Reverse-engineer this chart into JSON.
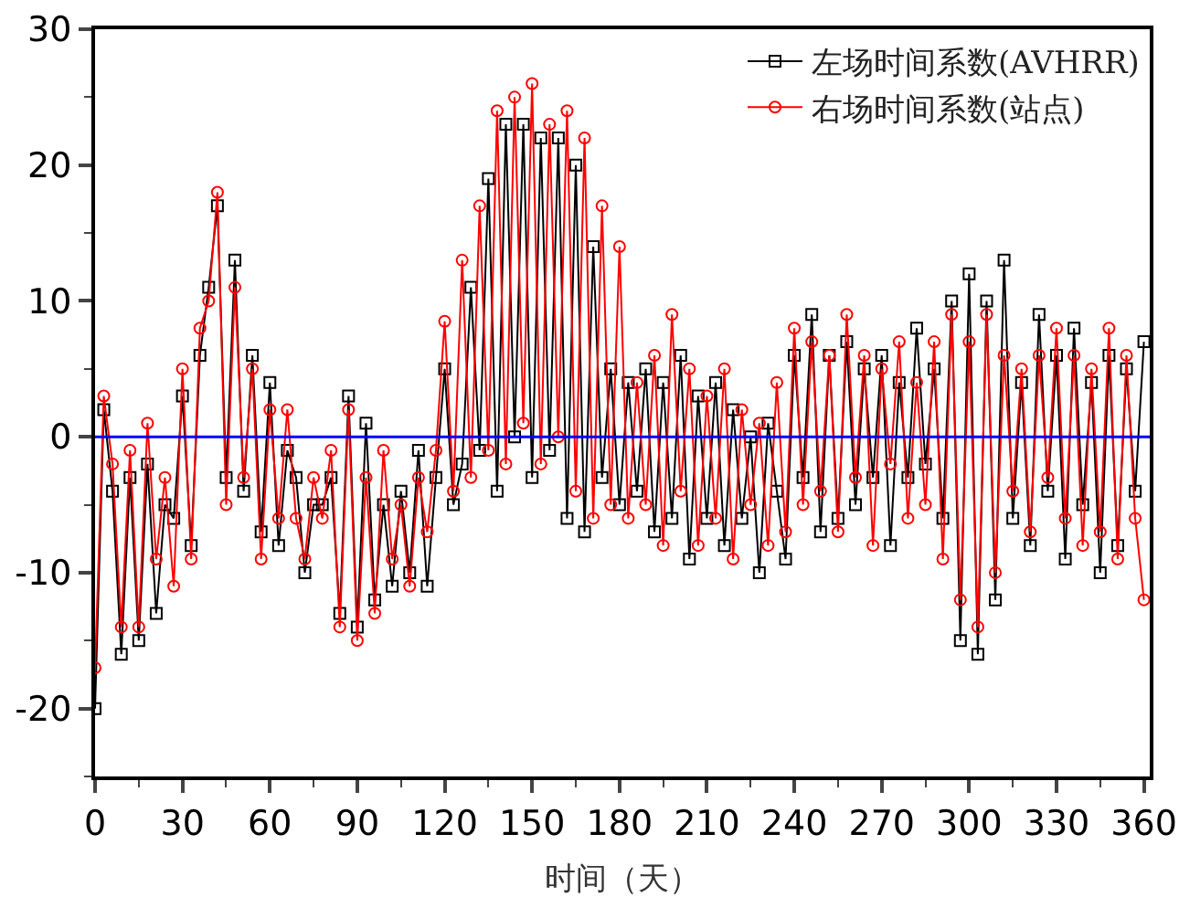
{
  "chart_data": {
    "type": "line",
    "xlabel": "时间（天）",
    "xlim": [
      0,
      362
    ],
    "xticks": [
      0,
      30,
      60,
      90,
      120,
      150,
      180,
      210,
      240,
      270,
      300,
      330,
      360
    ],
    "ylim": [
      -25,
      30
    ],
    "yticks": [
      -20,
      -10,
      0,
      10,
      20,
      30
    ],
    "grid": false,
    "legend": "top right",
    "line_style": "solid",
    "x": [
      0,
      3,
      6,
      9,
      12,
      15,
      18,
      21,
      24,
      27,
      30,
      33,
      36,
      39,
      42,
      45,
      48,
      51,
      54,
      57,
      60,
      63,
      66,
      69,
      72,
      75,
      78,
      81,
      84,
      87,
      90,
      93,
      96,
      99,
      102,
      105,
      108,
      111,
      114,
      117,
      120,
      123,
      126,
      129,
      132,
      135,
      138,
      141,
      144,
      147,
      150,
      153,
      156,
      159,
      162,
      165,
      168,
      171,
      174,
      177,
      180,
      183,
      186,
      189,
      192,
      195,
      198,
      201,
      204,
      207,
      210,
      213,
      216,
      219,
      222,
      225,
      228,
      231,
      234,
      237,
      240,
      243,
      246,
      249,
      252,
      255,
      258,
      261,
      264,
      267,
      270,
      273,
      276,
      279,
      282,
      285,
      288,
      291,
      294,
      297,
      300,
      303,
      306,
      309,
      312,
      315,
      318,
      321,
      324,
      327,
      330,
      333,
      336,
      339,
      342,
      345,
      348,
      351,
      354,
      357,
      360
    ],
    "series": [
      {
        "name": "左场时间系数(AVHRR)",
        "color": "#000000",
        "marker": "square",
        "values": [
          -20,
          2,
          -4,
          -16,
          -3,
          -15,
          -2,
          -13,
          -5,
          -6,
          3,
          -8,
          6,
          11,
          17,
          -3,
          13,
          -4,
          6,
          -7,
          4,
          -8,
          -1,
          -3,
          -10,
          -5,
          -5,
          -3,
          -13,
          3,
          -14,
          1,
          -12,
          -5,
          -11,
          -4,
          -10,
          -1,
          -11,
          -3,
          5,
          -5,
          -2,
          11,
          -1,
          19,
          -4,
          23,
          0,
          23,
          -3,
          22,
          -1,
          22,
          -6,
          20,
          -7,
          14,
          -3,
          5,
          -5,
          4,
          -4,
          5,
          -7,
          4,
          -6,
          6,
          -9,
          3,
          -6,
          4,
          -8,
          2,
          -6,
          0,
          -10,
          1,
          -4,
          -9,
          6,
          -3,
          9,
          -7,
          6,
          -6,
          7,
          -5,
          5,
          -3,
          6,
          -8,
          4,
          -3,
          8,
          -2,
          5,
          -6,
          10,
          -15,
          12,
          -16,
          10,
          -12,
          13,
          -6,
          4,
          -8,
          9,
          -4,
          6,
          -9,
          8,
          -5,
          4,
          -10,
          6,
          -8,
          5,
          -4,
          7
        ]
      },
      {
        "name": "右场时间系数(站点)",
        "color": "#ff0000",
        "marker": "circle",
        "values": [
          -17,
          3,
          -2,
          -14,
          -1,
          -14,
          1,
          -9,
          -3,
          -11,
          5,
          -9,
          8,
          10,
          18,
          -5,
          11,
          -3,
          5,
          -9,
          2,
          -6,
          2,
          -6,
          -9,
          -3,
          -6,
          -1,
          -14,
          2,
          -15,
          -3,
          -13,
          -1,
          -9,
          -5,
          -11,
          -3,
          -7,
          -1,
          8.5,
          -4,
          13,
          -3,
          17,
          -1,
          24,
          -2,
          25,
          1,
          26,
          -2,
          23,
          0,
          24,
          -4,
          22,
          -6,
          17,
          -5,
          14,
          -6,
          4,
          -5,
          6,
          -8,
          9,
          -4,
          5,
          -8,
          3,
          -6,
          5,
          -9,
          2,
          -5,
          1,
          -8,
          4,
          -7,
          8,
          -5,
          7,
          -4,
          6,
          -7,
          9,
          -3,
          6,
          -8,
          5,
          -2,
          7,
          -6,
          4,
          -5,
          7,
          -9,
          9,
          -12,
          7,
          -14,
          9,
          -10,
          6,
          -4,
          5,
          -7,
          6,
          -3,
          8,
          -6,
          6,
          -8,
          5,
          -7,
          8,
          -9,
          6,
          -6,
          -12
        ]
      }
    ],
    "ref_lines": [
      {
        "axis": "y",
        "value": 0,
        "color": "#0000ff",
        "line_style": "solid"
      }
    ]
  }
}
